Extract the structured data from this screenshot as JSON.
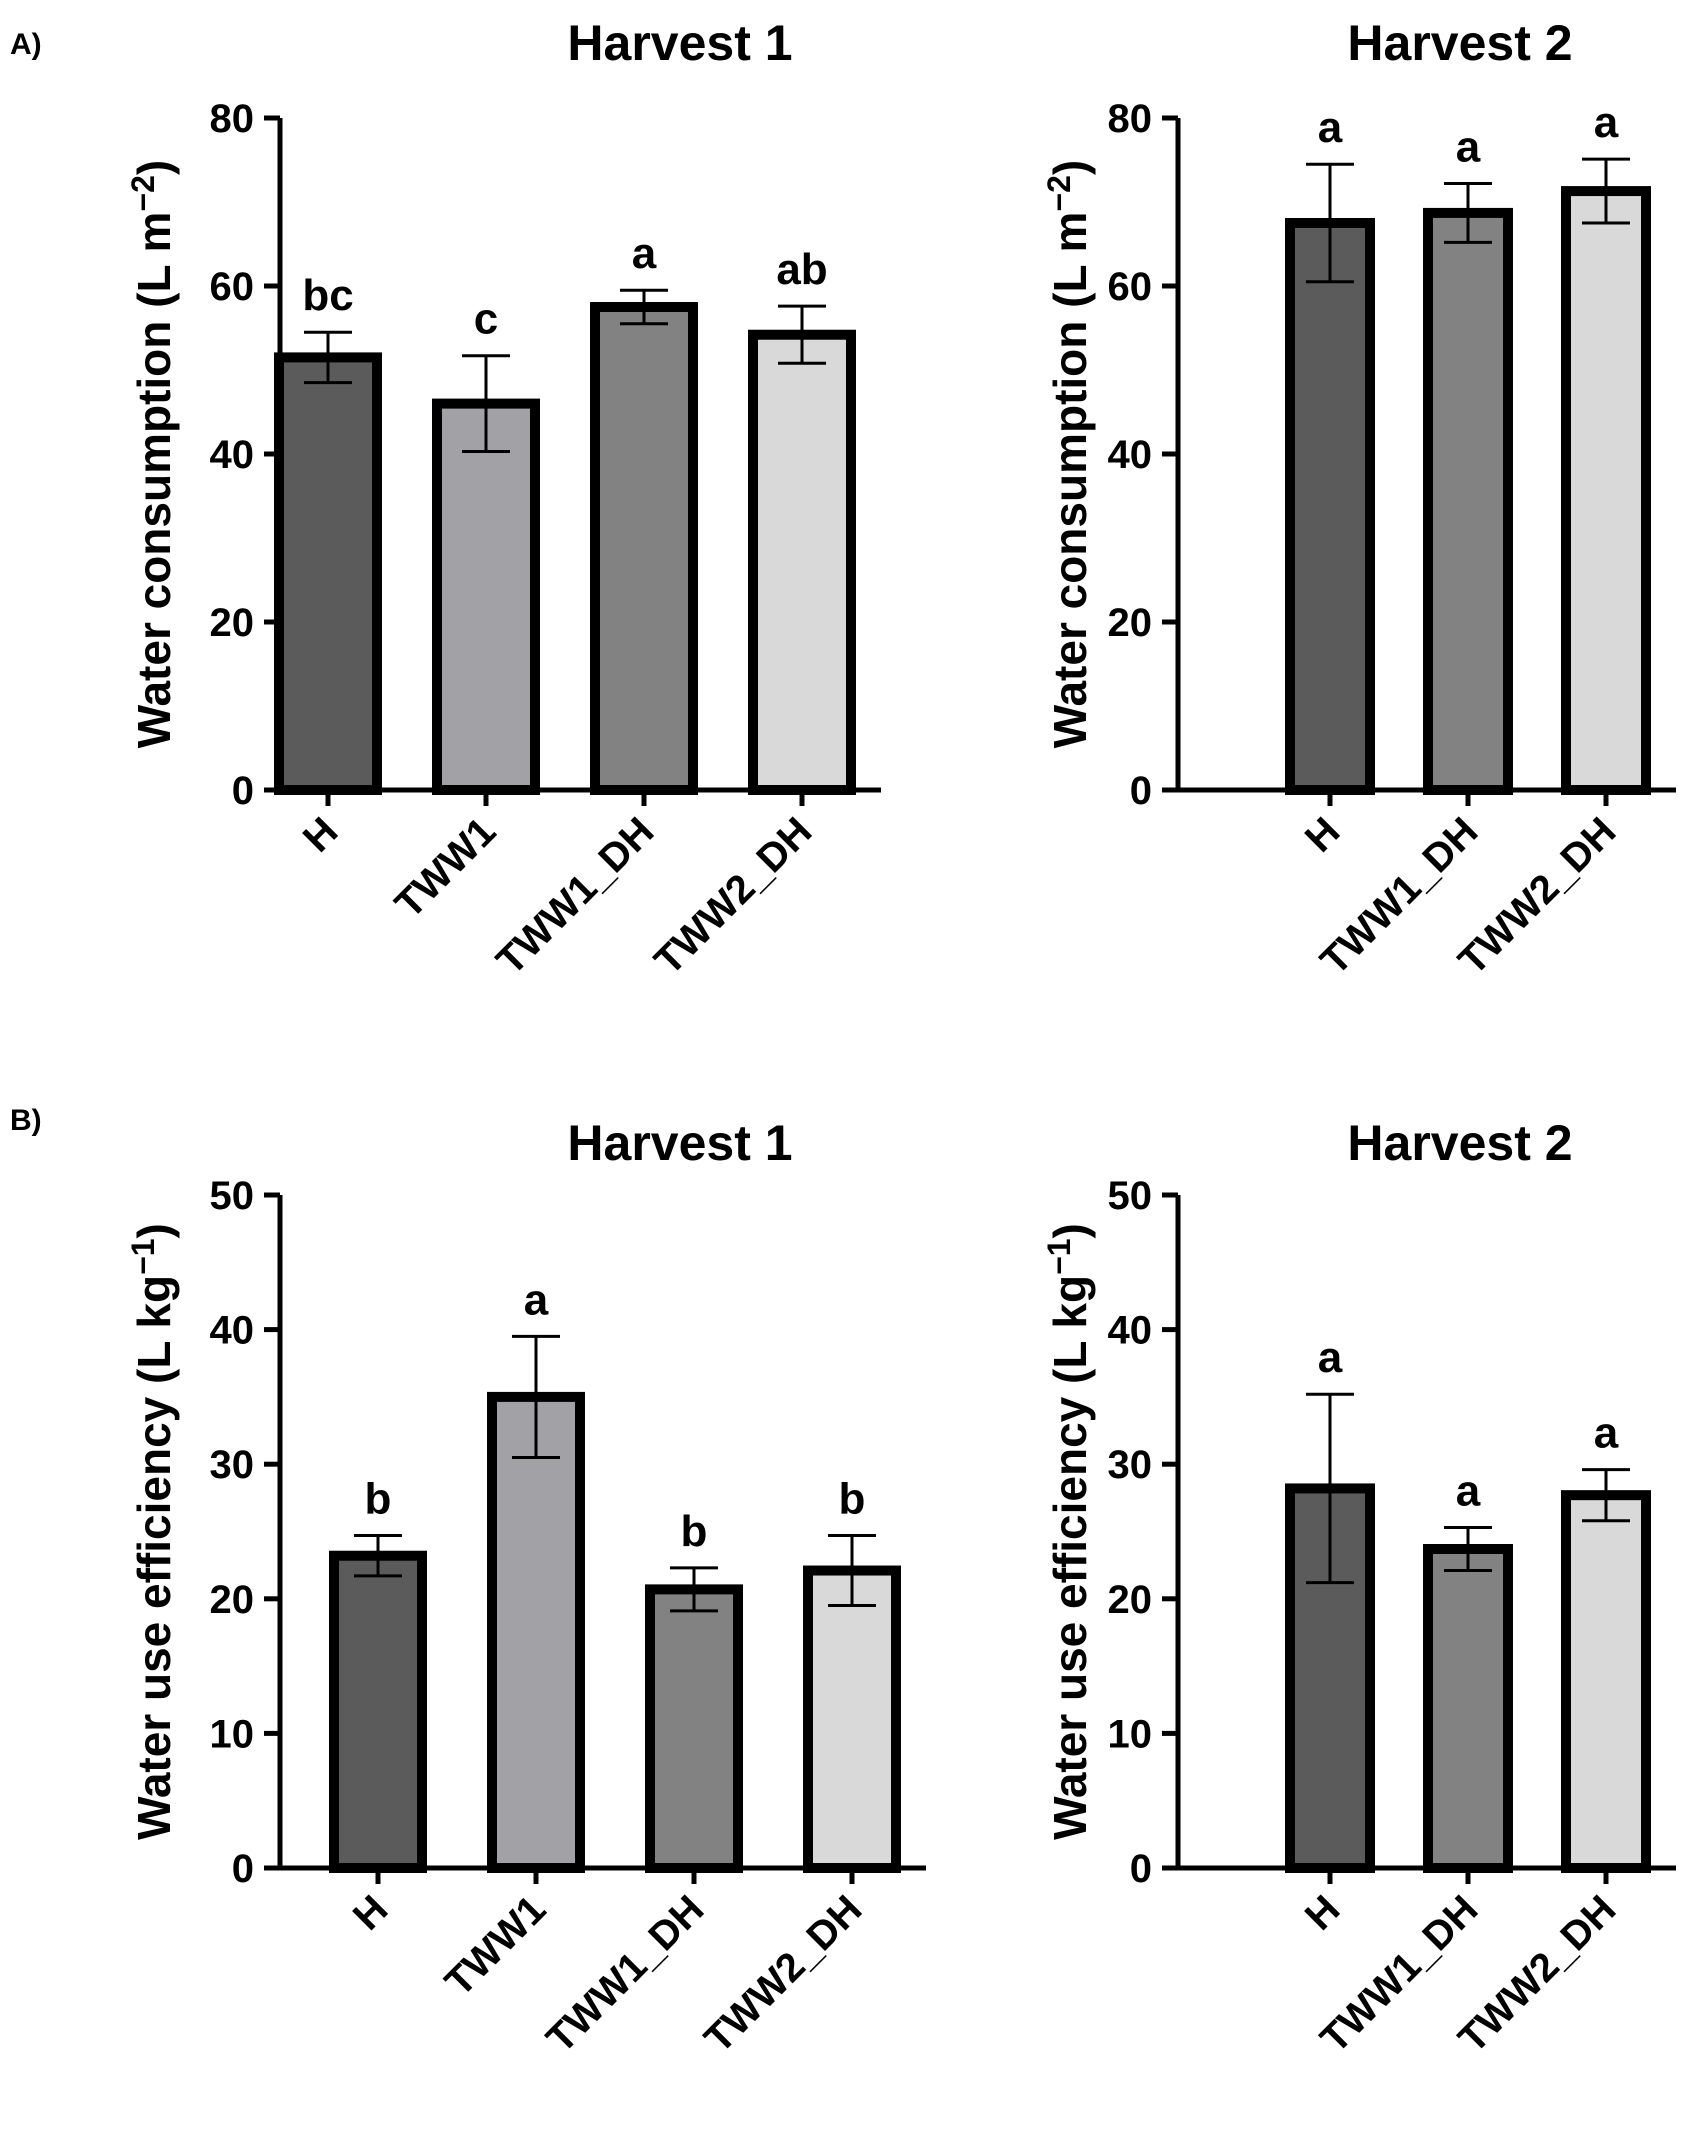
{
  "panel_labels": [
    "A)",
    "B)"
  ],
  "colors": {
    "H": "#5b5b5b",
    "TWW1": "#a2a2a6",
    "TWW1_DH": "#828282",
    "TWW2_DH": "#d9d9d9"
  },
  "chart_data": [
    {
      "id": "a-h1",
      "type": "bar",
      "title": "Harvest 1",
      "panel_label": "A)",
      "xlabel": "",
      "ylabel": "Water consumption (L m",
      "ylabel_sup": "−2",
      "ylabel_close": ")",
      "ylim": [
        0,
        80
      ],
      "yticks": [
        0,
        20,
        40,
        60,
        80
      ],
      "categories": [
        "H",
        "TWW1",
        "TWW1_DH",
        "TWW2_DH"
      ],
      "values": [
        51.5,
        46.0,
        57.5,
        54.2
      ],
      "errors": [
        3.0,
        5.7,
        2.0,
        3.4
      ],
      "letters": [
        "bc",
        "c",
        "a",
        "ab"
      ]
    },
    {
      "id": "a-h2",
      "type": "bar",
      "title": "Harvest 2",
      "panel_label": "",
      "xlabel": "",
      "ylabel": "Water consumption (L m",
      "ylabel_sup": "−2",
      "ylabel_close": ")",
      "ylim": [
        0,
        80
      ],
      "yticks": [
        0,
        20,
        40,
        60,
        80
      ],
      "categories": [
        "H",
        "TWW1_DH",
        "TWW2_DH"
      ],
      "values": [
        67.5,
        68.7,
        71.3
      ],
      "errors": [
        7.0,
        3.5,
        3.8
      ],
      "letters": [
        "a",
        "a",
        "a"
      ]
    },
    {
      "id": "b-h1",
      "type": "bar",
      "title": "Harvest 1",
      "panel_label": "B)",
      "xlabel": "",
      "ylabel": "Water use efficiency (L kg",
      "ylabel_sup": "−1",
      "ylabel_close": ")",
      "ylim": [
        0,
        50
      ],
      "yticks": [
        0,
        10,
        20,
        30,
        40,
        50
      ],
      "categories": [
        "H",
        "TWW1",
        "TWW1_DH",
        "TWW2_DH"
      ],
      "values": [
        23.2,
        35.0,
        20.7,
        22.1
      ],
      "errors": [
        1.5,
        4.5,
        1.6,
        2.6
      ],
      "letters": [
        "b",
        "a",
        "b",
        "b"
      ]
    },
    {
      "id": "b-h2",
      "type": "bar",
      "title": "Harvest 2",
      "panel_label": "",
      "xlabel": "",
      "ylabel": "Water use efficiency (L kg",
      "ylabel_sup": "−1",
      "ylabel_close": ")",
      "ylim": [
        0,
        50
      ],
      "yticks": [
        0,
        10,
        20,
        30,
        40,
        50
      ],
      "categories": [
        "H",
        "TWW1_DH",
        "TWW2_DH"
      ],
      "values": [
        28.2,
        23.7,
        27.7
      ],
      "errors": [
        7.0,
        1.6,
        1.9
      ],
      "letters": [
        "a",
        "a",
        "a"
      ]
    }
  ]
}
